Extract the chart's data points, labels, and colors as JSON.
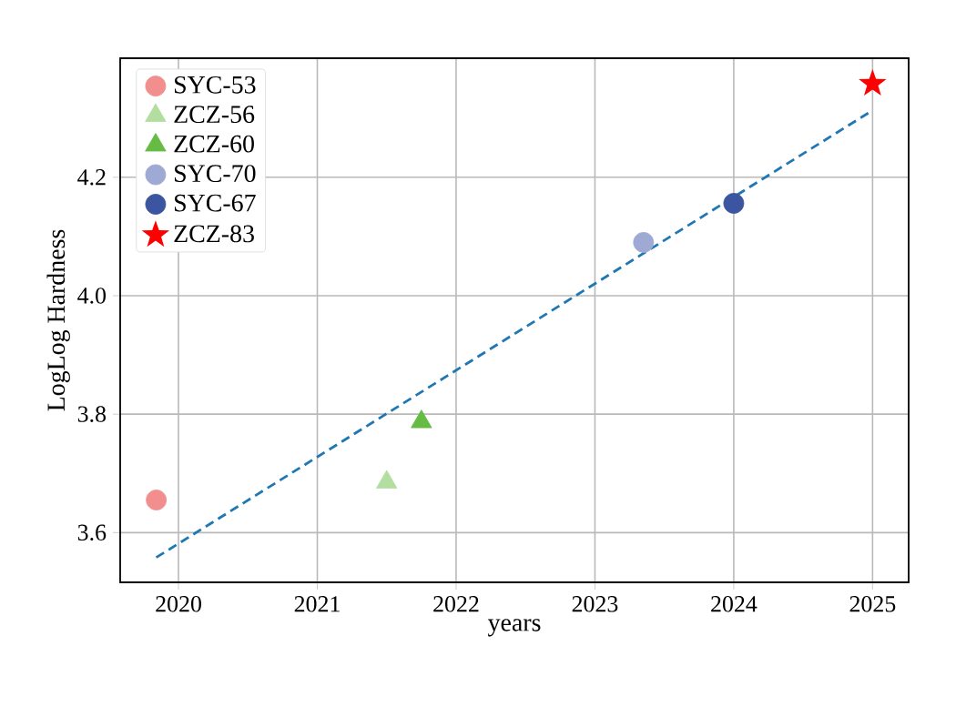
{
  "chart_data": {
    "type": "scatter",
    "xlabel": "years",
    "ylabel": "LogLog Hardness",
    "xlim": [
      2019.58,
      2025.26
    ],
    "ylim": [
      3.516,
      4.401
    ],
    "xticks": [
      2020,
      2021,
      2022,
      2023,
      2024,
      2025
    ],
    "yticks": [
      {
        "value": 3.6,
        "label": "3.6"
      },
      {
        "value": 3.8,
        "label": "3.8"
      },
      {
        "value": 4.0,
        "label": "4.0"
      },
      {
        "value": 4.2,
        "label": "4.2"
      }
    ],
    "grid": true,
    "legend": "top left",
    "series": [
      {
        "name": "SYC-53",
        "color": "#f28e8e",
        "marker": "circle",
        "x": [
          2019.84
        ],
        "values": [
          3.655
        ]
      },
      {
        "name": "ZCZ-56",
        "color": "#b3dea0",
        "marker": "triangle",
        "x": [
          2021.5
        ],
        "values": [
          3.685
        ]
      },
      {
        "name": "ZCZ-60",
        "color": "#66bb44",
        "marker": "triangle",
        "x": [
          2021.75
        ],
        "values": [
          3.787
        ]
      },
      {
        "name": "SYC-70",
        "color": "#9eaad4",
        "marker": "circle",
        "x": [
          2023.35
        ],
        "values": [
          4.09
        ]
      },
      {
        "name": "SYC-67",
        "color": "#3c55a0",
        "marker": "circle",
        "x": [
          2024.0
        ],
        "values": [
          4.156
        ]
      },
      {
        "name": "ZCZ-83",
        "color": "#ff0000",
        "marker": "star",
        "x": [
          2025.0
        ],
        "values": [
          4.358
        ]
      },
      {
        "type": "line",
        "color": "#1f77b4",
        "marker": "none",
        "line_style": "dashed",
        "x": [
          2019.84,
          2025.0
        ],
        "values": [
          3.558,
          4.313
        ]
      }
    ]
  }
}
